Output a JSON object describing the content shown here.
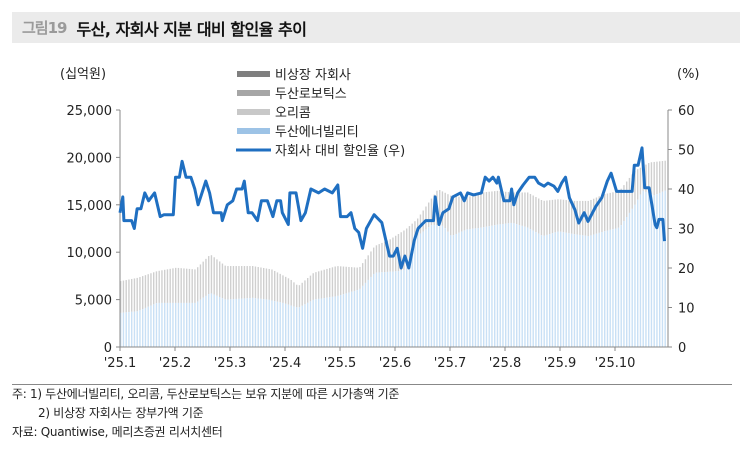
{
  "header": {
    "figure_label": "그림19",
    "title": "두산, 자회사 지분 대비 할인율 추이"
  },
  "chart_data": {
    "type": "bar+line",
    "title": "두산, 자회사 지분 대비 할인율 추이",
    "y_left_label": "(십억원)",
    "y_right_label": "(%)",
    "ylim_left": [
      0,
      25000
    ],
    "ylim_right": [
      0,
      60
    ],
    "y_left_ticks": [
      "0",
      "5,000",
      "10,000",
      "15,000",
      "20,000",
      "25,000"
    ],
    "y_right_ticks": [
      "0",
      "10",
      "20",
      "30",
      "40",
      "50",
      "60"
    ],
    "x_unit": "month of 2025 (1.0 = start of Jan)",
    "xlim": [
      1,
      10.9
    ],
    "x_ticks": [
      "'25.1",
      "'25.2",
      "'25.3",
      "'25.4",
      "'25.5",
      "'25.6",
      "'25.7",
      "'25.8",
      "'25.9",
      "'25.10"
    ],
    "legend_position": "top-center",
    "legend": [
      {
        "label": "비상장 자회사",
        "color": "#7f7f7f",
        "kind": "bar"
      },
      {
        "label": "두산로보틱스",
        "color": "#a6a6a6",
        "kind": "bar"
      },
      {
        "label": "오리콤",
        "color": "#c8c8c8",
        "kind": "bar"
      },
      {
        "label": "두산에너빌리티",
        "color": "#9dc3e6",
        "kind": "bar"
      },
      {
        "label": "자회사 대비 할인율 (우)",
        "color": "#1f6fc1",
        "kind": "line"
      }
    ],
    "bar_energy": [
      [
        1.0,
        3600
      ],
      [
        1.31,
        3770
      ],
      [
        1.66,
        4650
      ],
      [
        2.01,
        4650
      ],
      [
        2.36,
        4650
      ],
      [
        2.63,
        5700
      ],
      [
        2.91,
        5000
      ],
      [
        3.4,
        5180
      ],
      [
        3.68,
        5000
      ],
      [
        3.95,
        4650
      ],
      [
        4.23,
        4130
      ],
      [
        4.51,
        5000
      ],
      [
        4.93,
        5360
      ],
      [
        5.34,
        6070
      ],
      [
        5.62,
        7830
      ],
      [
        6.04,
        8000
      ],
      [
        6.18,
        8180
      ],
      [
        6.39,
        11700
      ],
      [
        6.66,
        12900
      ],
      [
        6.87,
        12770
      ],
      [
        7.01,
        11700
      ],
      [
        7.29,
        12400
      ],
      [
        7.57,
        12600
      ],
      [
        7.85,
        12900
      ],
      [
        8.12,
        13100
      ],
      [
        8.4,
        12600
      ],
      [
        8.68,
        11700
      ],
      [
        8.96,
        12200
      ],
      [
        9.24,
        11900
      ],
      [
        9.51,
        11700
      ],
      [
        9.79,
        12200
      ],
      [
        10.07,
        12600
      ],
      [
        10.35,
        15000
      ],
      [
        10.49,
        16500
      ],
      [
        10.7,
        16000
      ],
      [
        10.9,
        16500
      ]
    ],
    "bar_total": [
      [
        1.0,
        6950
      ],
      [
        1.31,
        7300
      ],
      [
        1.66,
        8000
      ],
      [
        2.01,
        8360
      ],
      [
        2.36,
        8180
      ],
      [
        2.63,
        9770
      ],
      [
        2.91,
        8540
      ],
      [
        3.4,
        8540
      ],
      [
        3.75,
        8180
      ],
      [
        4.09,
        7120
      ],
      [
        4.23,
        6420
      ],
      [
        4.51,
        7830
      ],
      [
        4.93,
        8540
      ],
      [
        5.34,
        8360
      ],
      [
        5.62,
        10650
      ],
      [
        5.9,
        11360
      ],
      [
        6.18,
        12400
      ],
      [
        6.39,
        13470
      ],
      [
        6.6,
        15240
      ],
      [
        6.77,
        16650
      ],
      [
        7.01,
        15940
      ],
      [
        7.29,
        15770
      ],
      [
        7.57,
        16300
      ],
      [
        7.85,
        16470
      ],
      [
        8.12,
        16300
      ],
      [
        8.4,
        16300
      ],
      [
        8.68,
        15410
      ],
      [
        8.96,
        15590
      ],
      [
        9.24,
        15410
      ],
      [
        9.51,
        15410
      ],
      [
        9.79,
        16120
      ],
      [
        10.07,
        16470
      ],
      [
        10.35,
        18590
      ],
      [
        10.62,
        19470
      ],
      [
        10.9,
        19650
      ]
    ],
    "line_discount": [
      [
        1.0,
        34
      ],
      [
        1.05,
        38
      ],
      [
        1.07,
        32
      ],
      [
        1.21,
        32
      ],
      [
        1.26,
        30
      ],
      [
        1.31,
        35
      ],
      [
        1.38,
        35
      ],
      [
        1.45,
        39
      ],
      [
        1.52,
        37
      ],
      [
        1.63,
        39
      ],
      [
        1.73,
        33
      ],
      [
        1.8,
        33.5
      ],
      [
        1.97,
        33.5
      ],
      [
        2.01,
        43
      ],
      [
        2.08,
        43
      ],
      [
        2.13,
        47
      ],
      [
        2.2,
        43
      ],
      [
        2.29,
        43
      ],
      [
        2.36,
        40
      ],
      [
        2.42,
        36
      ],
      [
        2.49,
        39
      ],
      [
        2.56,
        42
      ],
      [
        2.63,
        39
      ],
      [
        2.7,
        34
      ],
      [
        2.84,
        34
      ],
      [
        2.86,
        32
      ],
      [
        2.95,
        36
      ],
      [
        3.05,
        37
      ],
      [
        3.12,
        40
      ],
      [
        3.22,
        40
      ],
      [
        3.26,
        42
      ],
      [
        3.33,
        34
      ],
      [
        3.4,
        34
      ],
      [
        3.5,
        32
      ],
      [
        3.57,
        37
      ],
      [
        3.68,
        37
      ],
      [
        3.78,
        33
      ],
      [
        3.85,
        37
      ],
      [
        3.92,
        37
      ],
      [
        3.95,
        34
      ],
      [
        4.06,
        31
      ],
      [
        4.09,
        39
      ],
      [
        4.2,
        39
      ],
      [
        4.29,
        32
      ],
      [
        4.37,
        34
      ],
      [
        4.47,
        40
      ],
      [
        4.61,
        39
      ],
      [
        4.72,
        40
      ],
      [
        4.86,
        39
      ],
      [
        4.96,
        41
      ],
      [
        5.01,
        33
      ],
      [
        5.13,
        33
      ],
      [
        5.2,
        34
      ],
      [
        5.27,
        30
      ],
      [
        5.34,
        29
      ],
      [
        5.41,
        25
      ],
      [
        5.48,
        30
      ],
      [
        5.62,
        33.5
      ],
      [
        5.76,
        31.5
      ],
      [
        5.9,
        23
      ],
      [
        5.97,
        23
      ],
      [
        6.04,
        25
      ],
      [
        6.11,
        20
      ],
      [
        6.18,
        23
      ],
      [
        6.25,
        20
      ],
      [
        6.35,
        27
      ],
      [
        6.42,
        30
      ],
      [
        6.49,
        31
      ],
      [
        6.56,
        32
      ],
      [
        6.7,
        32
      ],
      [
        6.73,
        38
      ],
      [
        6.8,
        31
      ],
      [
        6.87,
        34
      ],
      [
        6.98,
        35
      ],
      [
        7.05,
        38
      ],
      [
        7.19,
        39
      ],
      [
        7.26,
        37
      ],
      [
        7.32,
        39
      ],
      [
        7.43,
        38.5
      ],
      [
        7.57,
        39
      ],
      [
        7.64,
        43
      ],
      [
        7.71,
        42
      ],
      [
        7.78,
        43
      ],
      [
        7.85,
        41.5
      ],
      [
        7.88,
        43
      ],
      [
        7.98,
        37
      ],
      [
        8.09,
        37
      ],
      [
        8.12,
        40
      ],
      [
        8.16,
        36
      ],
      [
        8.23,
        39
      ],
      [
        8.33,
        41
      ],
      [
        8.44,
        43
      ],
      [
        8.54,
        43
      ],
      [
        8.61,
        41.5
      ],
      [
        8.71,
        40.7
      ],
      [
        8.78,
        41.5
      ],
      [
        8.89,
        40.7
      ],
      [
        8.96,
        39.4
      ],
      [
        9.03,
        41.5
      ],
      [
        9.1,
        43
      ],
      [
        9.17,
        37.8
      ],
      [
        9.27,
        34.8
      ],
      [
        9.34,
        31.4
      ],
      [
        9.44,
        34
      ],
      [
        9.51,
        31.8
      ],
      [
        9.65,
        35.6
      ],
      [
        9.76,
        37.8
      ],
      [
        9.86,
        42
      ],
      [
        9.93,
        44
      ],
      [
        10.03,
        39.4
      ],
      [
        10.31,
        39.4
      ],
      [
        10.35,
        46
      ],
      [
        10.42,
        46
      ],
      [
        10.49,
        50.4
      ],
      [
        10.54,
        40.3
      ],
      [
        10.62,
        40.3
      ],
      [
        10.73,
        31
      ],
      [
        10.76,
        30.2
      ],
      [
        10.8,
        32.3
      ],
      [
        10.87,
        32.3
      ],
      [
        10.9,
        26.8
      ]
    ]
  },
  "notes": {
    "note1": "주: 1) 두산에너빌리티, 오리콤, 두산로보틱스는 보유 지분에 따른 시가총액 기준",
    "note2": "2) 비상장 자회사는 장부가액 기준",
    "source": "자료: Quantiwise, 메리츠증권 리서치센터"
  }
}
